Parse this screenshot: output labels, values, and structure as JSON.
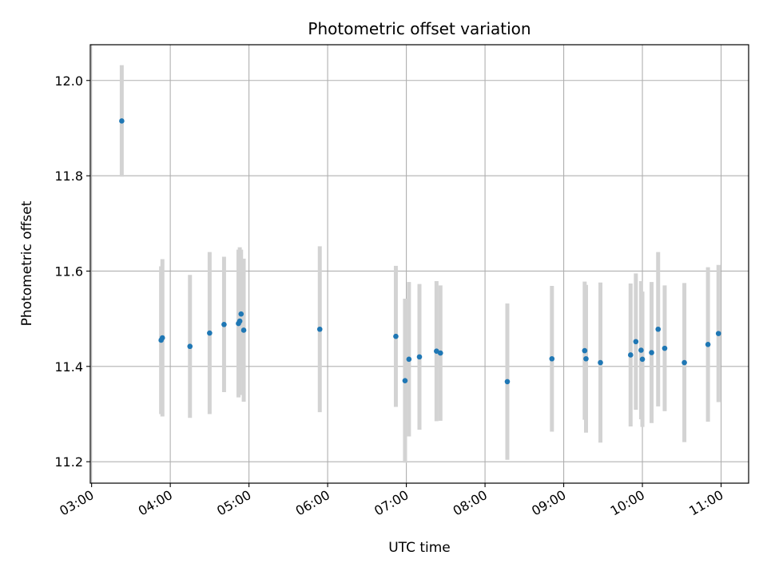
{
  "chart_data": {
    "type": "scatter",
    "title": "Photometric offset variation",
    "xlabel": "UTC time",
    "ylabel": "Photometric offset",
    "x_ticks": [
      "03:00",
      "04:00",
      "05:00",
      "06:00",
      "07:00",
      "08:00",
      "09:00",
      "10:00",
      "11:00"
    ],
    "y_ticks": [
      "11.2",
      "11.4",
      "11.6",
      "11.8",
      "12.0"
    ],
    "xlim": [
      "02:59",
      "11:21"
    ],
    "ylim": [
      11.155,
      12.075
    ],
    "grid": true,
    "colors": {
      "point": "#1f77b4",
      "errorbar": "#d3d3d3",
      "grid": "#b0b0b0"
    },
    "points": [
      {
        "t": "03:23",
        "y": 11.915,
        "err": 0.117
      },
      {
        "t": "03:53",
        "y": 11.455,
        "err": 0.155
      },
      {
        "t": "03:54",
        "y": 11.46,
        "err": 0.165
      },
      {
        "t": "04:15",
        "y": 11.442,
        "err": 0.15
      },
      {
        "t": "04:30",
        "y": 11.47,
        "err": 0.17
      },
      {
        "t": "04:41",
        "y": 11.488,
        "err": 0.142
      },
      {
        "t": "04:52",
        "y": 11.49,
        "err": 0.155
      },
      {
        "t": "04:53",
        "y": 11.495,
        "err": 0.155
      },
      {
        "t": "04:54",
        "y": 11.51,
        "err": 0.135
      },
      {
        "t": "04:56",
        "y": 11.476,
        "err": 0.15
      },
      {
        "t": "05:54",
        "y": 11.478,
        "err": 0.174
      },
      {
        "t": "06:52",
        "y": 11.463,
        "err": 0.148
      },
      {
        "t": "06:59",
        "y": 11.37,
        "err": 0.172
      },
      {
        "t": "07:02",
        "y": 11.415,
        "err": 0.162
      },
      {
        "t": "07:10",
        "y": 11.42,
        "err": 0.153
      },
      {
        "t": "07:23",
        "y": 11.432,
        "err": 0.147
      },
      {
        "t": "07:26",
        "y": 11.428,
        "err": 0.142
      },
      {
        "t": "08:17",
        "y": 11.368,
        "err": 0.164
      },
      {
        "t": "08:51",
        "y": 11.416,
        "err": 0.153
      },
      {
        "t": "09:16",
        "y": 11.433,
        "err": 0.145
      },
      {
        "t": "09:17",
        "y": 11.416,
        "err": 0.155
      },
      {
        "t": "09:28",
        "y": 11.408,
        "err": 0.168
      },
      {
        "t": "09:51",
        "y": 11.424,
        "err": 0.15
      },
      {
        "t": "09:55",
        "y": 11.452,
        "err": 0.143
      },
      {
        "t": "09:59",
        "y": 11.434,
        "err": 0.145
      },
      {
        "t": "10:00",
        "y": 11.415,
        "err": 0.142
      },
      {
        "t": "10:07",
        "y": 11.429,
        "err": 0.148
      },
      {
        "t": "10:12",
        "y": 11.478,
        "err": 0.162
      },
      {
        "t": "10:17",
        "y": 11.438,
        "err": 0.132
      },
      {
        "t": "10:32",
        "y": 11.408,
        "err": 0.167
      },
      {
        "t": "10:50",
        "y": 11.446,
        "err": 0.162
      },
      {
        "t": "10:58",
        "y": 11.469,
        "err": 0.144
      }
    ]
  }
}
